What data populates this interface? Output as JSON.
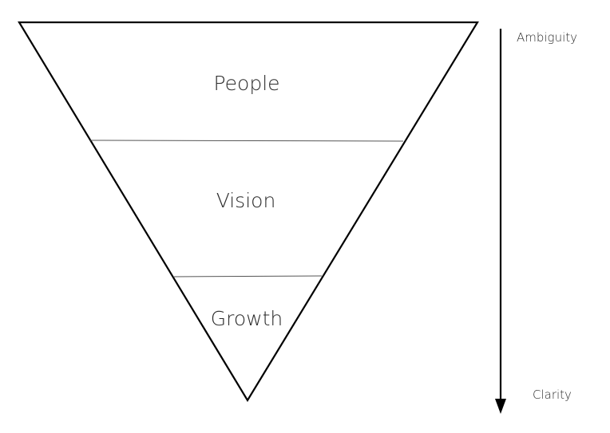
{
  "diagram": {
    "layers": [
      {
        "label": "People"
      },
      {
        "label": "Vision"
      },
      {
        "label": "Growth"
      }
    ],
    "scale": {
      "top_label": "Ambiguity",
      "bottom_label": "Clarity"
    }
  }
}
